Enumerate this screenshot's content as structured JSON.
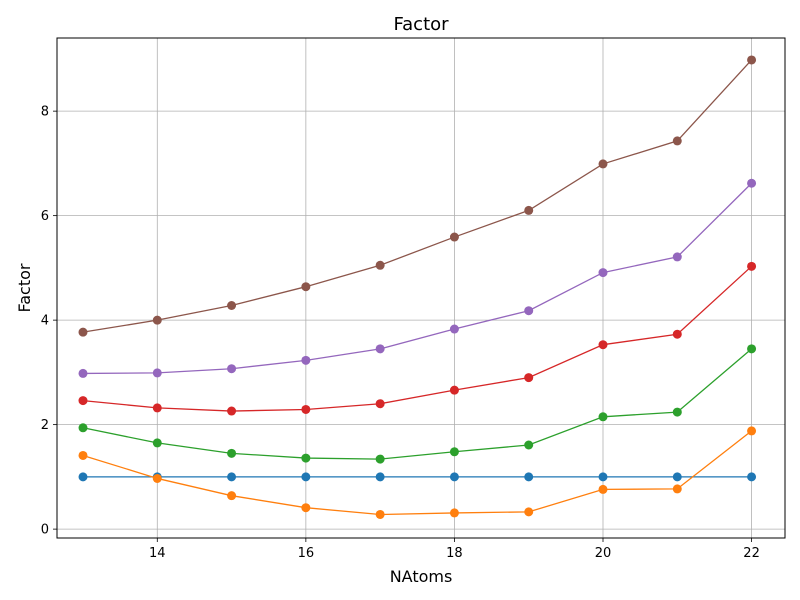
{
  "chart_data": {
    "type": "line",
    "title": "Factor",
    "xlabel": "NAtoms",
    "ylabel": "Factor",
    "xlim": [
      12.65,
      22.45
    ],
    "ylim": [
      -0.17,
      9.4
    ],
    "xticks": [
      14,
      16,
      18,
      20,
      22
    ],
    "yticks": [
      0,
      2,
      4,
      6,
      8
    ],
    "grid": true,
    "x": [
      13,
      14,
      15,
      16,
      17,
      18,
      19,
      20,
      21,
      22
    ],
    "series": [
      {
        "color": "#1f77b4",
        "values": [
          1.0,
          1.0,
          1.0,
          1.0,
          1.0,
          1.0,
          1.0,
          1.0,
          1.0,
          1.0
        ]
      },
      {
        "color": "#ff7f0e",
        "values": [
          1.41,
          0.97,
          0.64,
          0.41,
          0.28,
          0.31,
          0.33,
          0.76,
          0.77,
          1.88
        ]
      },
      {
        "color": "#2ca02c",
        "values": [
          1.94,
          1.65,
          1.45,
          1.36,
          1.34,
          1.48,
          1.61,
          2.15,
          2.24,
          3.45
        ]
      },
      {
        "color": "#d62728",
        "values": [
          2.46,
          2.32,
          2.26,
          2.29,
          2.4,
          2.66,
          2.9,
          3.53,
          3.73,
          5.03
        ]
      },
      {
        "color": "#9467bd",
        "values": [
          2.98,
          2.99,
          3.07,
          3.23,
          3.45,
          3.83,
          4.18,
          4.91,
          5.21,
          6.62
        ]
      },
      {
        "color": "#8c564b",
        "values": [
          3.77,
          4.0,
          4.28,
          4.64,
          5.05,
          5.59,
          6.1,
          6.99,
          7.43,
          8.98
        ]
      }
    ]
  }
}
